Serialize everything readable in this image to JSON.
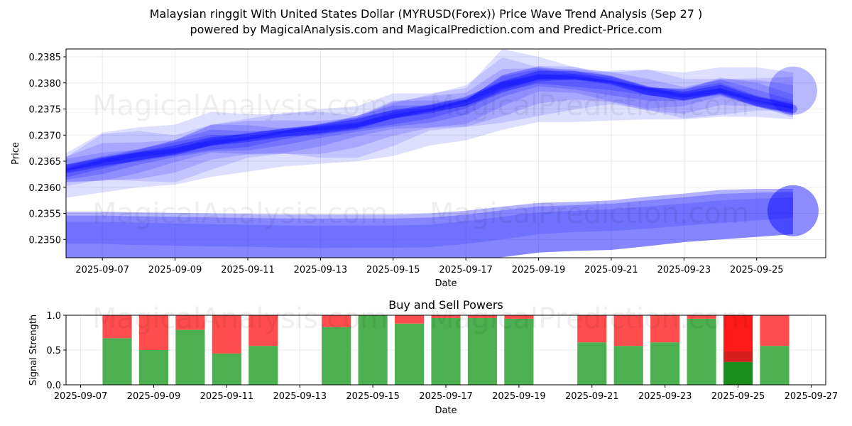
{
  "header": {
    "title_line1": "Malaysian ringgit With United States Dollar (MYRUSD(Forex)) Price Wave Trend Analysis (Sep 27 )",
    "title_line2": "powered by MagicalAnalysis.com and MagicalPrediction.com and Predict-Price.com"
  },
  "watermark": {
    "left": "MagicalAnalysis.com",
    "right": "MagicalPrediction.com"
  },
  "colors": {
    "wave_blue": "#0000ff",
    "buy_green": "#4caf50",
    "sell_red": "#ff4d4d",
    "strong_green": "#1a8c1a",
    "strong_red": "#ff1a1a"
  },
  "chart_data": [
    {
      "type": "area",
      "title": "",
      "xlabel": "Date",
      "ylabel": "Price",
      "ylim": [
        0.23465,
        0.23865
      ],
      "xlim": [
        "2025-09-06",
        "2025-09-26.9"
      ],
      "x_ticks": [
        "2025-09-07",
        "2025-09-09",
        "2025-09-11",
        "2025-09-13",
        "2025-09-15",
        "2025-09-17",
        "2025-09-19",
        "2025-09-21",
        "2025-09-23",
        "2025-09-25"
      ],
      "y_ticks": [
        "0.2350",
        "0.2355",
        "0.2360",
        "0.2365",
        "0.2370",
        "0.2375",
        "0.2380",
        "0.2385"
      ],
      "grid": true,
      "dates": [
        "2025-09-06",
        "2025-09-07",
        "2025-09-08",
        "2025-09-09",
        "2025-09-10",
        "2025-09-11",
        "2025-09-12",
        "2025-09-13",
        "2025-09-14",
        "2025-09-15",
        "2025-09-16",
        "2025-09-17",
        "2025-09-18",
        "2025-09-19",
        "2025-09-20",
        "2025-09-21",
        "2025-09-22",
        "2025-09-23",
        "2025-09-24",
        "2025-09-25",
        "2025-09-26"
      ],
      "series": [
        {
          "name": "upper wave center",
          "values": [
            0.23635,
            0.23648,
            0.2366,
            0.23672,
            0.23688,
            0.23695,
            0.23705,
            0.23712,
            0.23722,
            0.2374,
            0.2375,
            0.23765,
            0.23795,
            0.23815,
            0.23815,
            0.23805,
            0.23785,
            0.23775,
            0.23788,
            0.23765,
            0.2375
          ]
        },
        {
          "name": "upper wave top",
          "values": [
            0.23665,
            0.23705,
            0.23715,
            0.2372,
            0.23745,
            0.2374,
            0.2374,
            0.2375,
            0.23755,
            0.2378,
            0.2378,
            0.2379,
            0.23865,
            0.2385,
            0.2383,
            0.2382,
            0.23825,
            0.2382,
            0.2383,
            0.2383,
            0.2382
          ]
        },
        {
          "name": "upper wave bottom",
          "values": [
            0.2358,
            0.2359,
            0.236,
            0.23605,
            0.2362,
            0.2363,
            0.2364,
            0.23645,
            0.2365,
            0.2366,
            0.2368,
            0.2369,
            0.2371,
            0.23725,
            0.23725,
            0.23728,
            0.2373,
            0.2373,
            0.23735,
            0.23735,
            0.2373
          ]
        },
        {
          "name": "lower wave center",
          "values": [
            0.23505,
            0.23505,
            0.23502,
            0.235,
            0.23498,
            0.23497,
            0.23495,
            0.23494,
            0.23495,
            0.23495,
            0.23496,
            0.23505,
            0.23515,
            0.23525,
            0.2353,
            0.23532,
            0.23535,
            0.2354,
            0.23545,
            0.2355,
            0.23555
          ]
        },
        {
          "name": "lower wave top",
          "values": [
            0.23553,
            0.23553,
            0.23552,
            0.23551,
            0.2355,
            0.23549,
            0.23548,
            0.23548,
            0.23548,
            0.23548,
            0.2355,
            0.23555,
            0.23563,
            0.2357,
            0.23572,
            0.23575,
            0.23582,
            0.23588,
            0.23595,
            0.23597,
            0.23597
          ]
        },
        {
          "name": "lower wave bottom",
          "values": [
            0.2346,
            0.2346,
            0.2346,
            0.2346,
            0.2346,
            0.2346,
            0.2346,
            0.2346,
            0.2346,
            0.2346,
            0.2346,
            0.2346,
            0.23466,
            0.23475,
            0.23478,
            0.2348,
            0.23487,
            0.23495,
            0.235,
            0.23505,
            0.2351
          ]
        }
      ]
    },
    {
      "type": "bar",
      "title": "Buy and Sell Powers",
      "xlabel": "Date",
      "ylabel": "Signal Strength",
      "ylim": [
        0,
        1
      ],
      "xlim": [
        "2025-09-06.6",
        "2025-09-27.4"
      ],
      "x_ticks": [
        "2025-09-07",
        "2025-09-09",
        "2025-09-11",
        "2025-09-13",
        "2025-09-15",
        "2025-09-17",
        "2025-09-19",
        "2025-09-21",
        "2025-09-23",
        "2025-09-25",
        "2025-09-27"
      ],
      "y_ticks": [
        "0.0",
        "0.5",
        "1.0"
      ],
      "grid": true,
      "stacked": true,
      "categories": [
        "2025-09-08",
        "2025-09-09",
        "2025-09-10",
        "2025-09-11",
        "2025-09-12",
        "2025-09-14",
        "2025-09-15",
        "2025-09-16",
        "2025-09-17",
        "2025-09-18",
        "2025-09-19",
        "2025-09-21",
        "2025-09-22",
        "2025-09-23",
        "2025-09-24",
        "2025-09-25",
        "2025-09-26"
      ],
      "series": [
        {
          "name": "Buy",
          "values": [
            0.67,
            0.5,
            0.79,
            0.45,
            0.56,
            0.83,
            1.0,
            0.88,
            0.96,
            0.96,
            0.95,
            0.61,
            0.56,
            0.61,
            0.95,
            0.33,
            0.56
          ]
        },
        {
          "name": "Sell",
          "values": [
            0.33,
            0.5,
            0.21,
            0.55,
            0.44,
            0.17,
            0.0,
            0.12,
            0.04,
            0.04,
            0.05,
            0.39,
            0.44,
            0.39,
            0.05,
            0.67,
            0.44
          ]
        }
      ],
      "highlight": "2025-09-25"
    }
  ]
}
